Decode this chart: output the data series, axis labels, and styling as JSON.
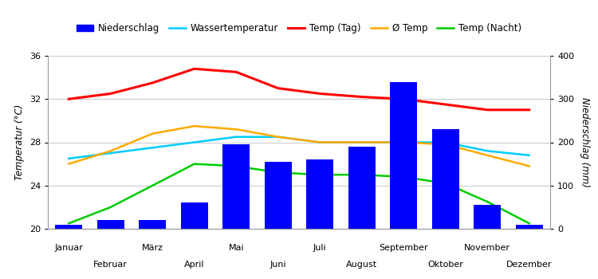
{
  "months": [
    "Januar",
    "Februar",
    "März",
    "April",
    "Mai",
    "Juni",
    "Juli",
    "August",
    "September",
    "Oktober",
    "November",
    "Dezember"
  ],
  "x_positions": [
    0,
    1,
    2,
    3,
    4,
    5,
    6,
    7,
    8,
    9,
    10,
    11
  ],
  "niederschlag": [
    10,
    20,
    20,
    60,
    195,
    155,
    160,
    190,
    340,
    230,
    55,
    10
  ],
  "temp_tag": [
    32.0,
    32.5,
    33.5,
    34.8,
    34.5,
    33.0,
    32.5,
    32.2,
    32.0,
    31.5,
    31.0,
    31.0
  ],
  "avg_temp": [
    26.0,
    27.2,
    28.8,
    29.5,
    29.2,
    28.5,
    28.0,
    28.0,
    28.0,
    27.8,
    26.8,
    25.8
  ],
  "wassertemp": [
    26.5,
    27.0,
    27.5,
    28.0,
    28.5,
    28.5,
    28.0,
    28.0,
    28.0,
    28.0,
    27.2,
    26.8
  ],
  "temp_nacht": [
    20.5,
    22.0,
    24.0,
    26.0,
    25.8,
    25.2,
    25.0,
    25.0,
    24.8,
    24.2,
    22.5,
    20.5
  ],
  "bar_color": "#0000ff",
  "wassertemp_color": "#00ccff",
  "temp_tag_color": "#ff0000",
  "avg_temp_color": "#ffaa00",
  "temp_nacht_color": "#00cc00",
  "ylabel_left": "Temperatur (°C)",
  "ylabel_right": "Niederschlag (mm)",
  "temp_ylim": [
    20,
    36
  ],
  "precip_ylim": [
    0,
    400
  ],
  "temp_yticks": [
    20,
    24,
    28,
    32,
    36
  ],
  "precip_yticks": [
    0,
    100,
    200,
    300,
    400
  ],
  "legend_labels": [
    "Niederschlag",
    "Wassertemperatur",
    "Temp (Tag)",
    "Ø Temp",
    "Temp (Nacht)"
  ],
  "background_color": "#ffffff",
  "grid_color": "#cccccc"
}
